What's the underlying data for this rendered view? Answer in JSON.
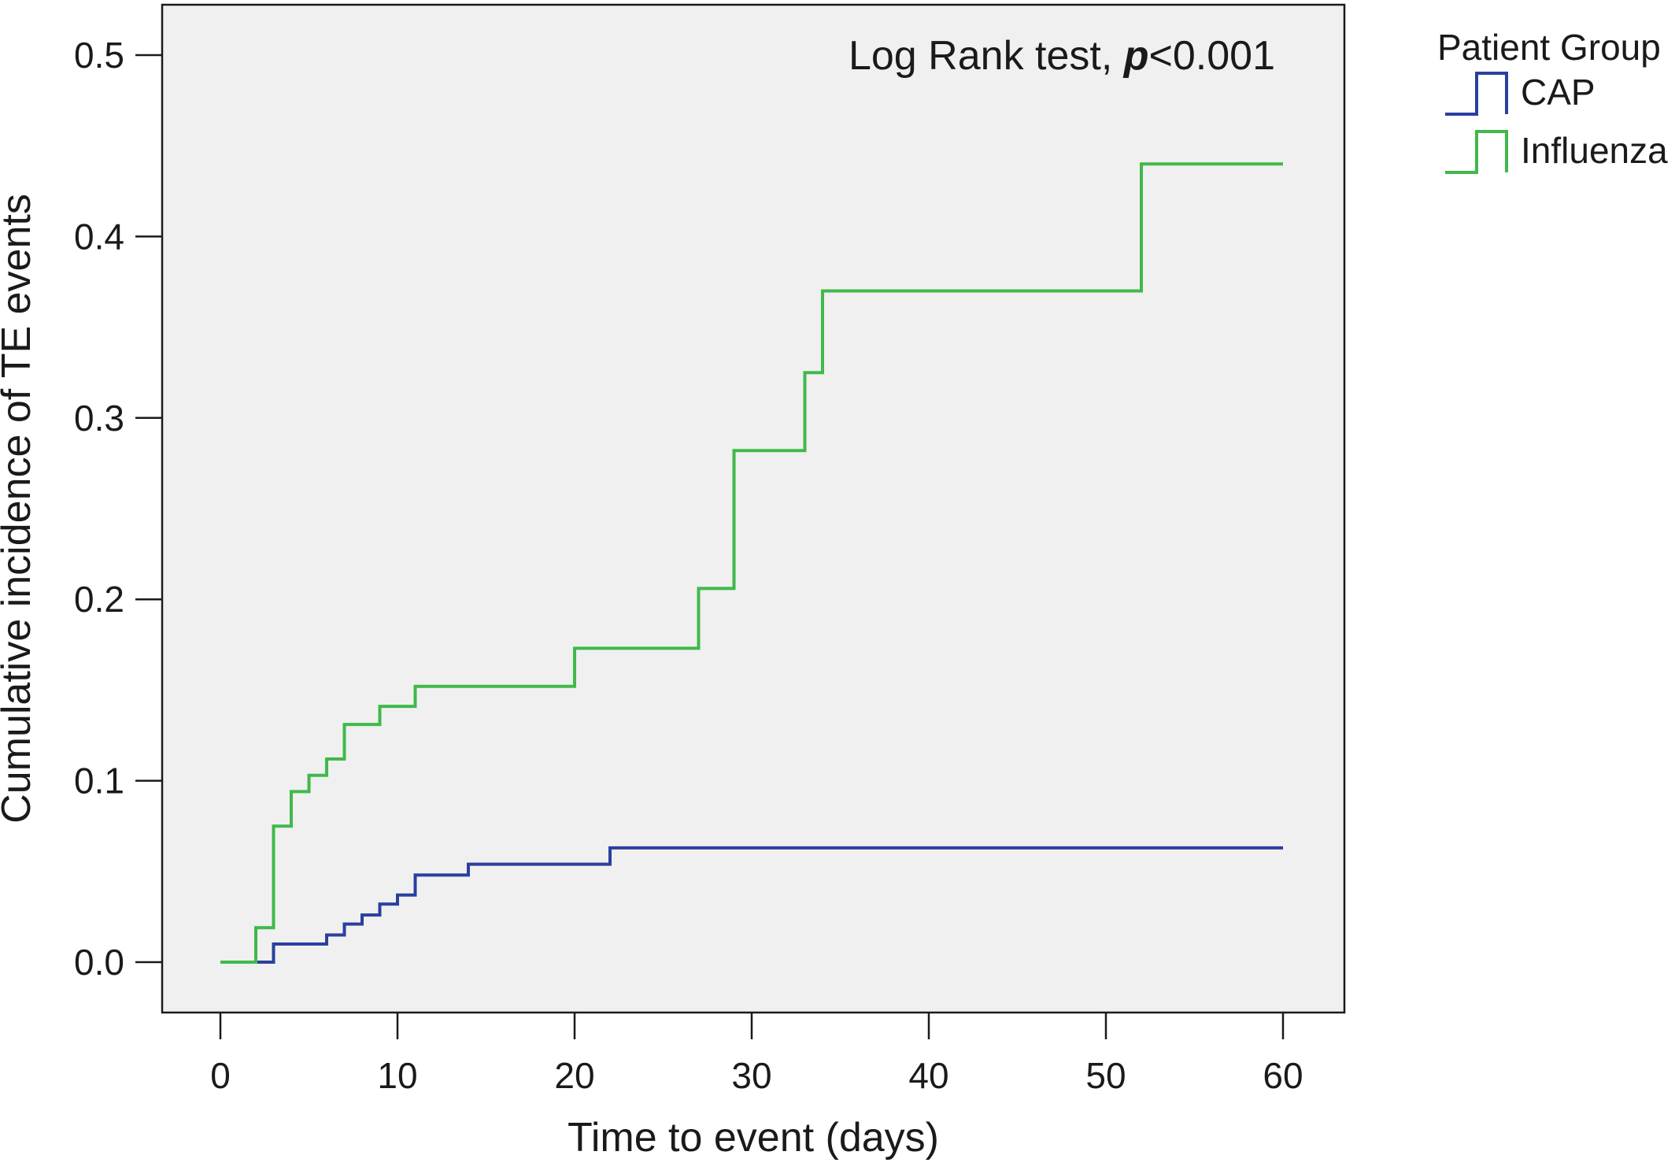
{
  "chart_data": {
    "type": "line",
    "step": true,
    "xlabel": "Time to event (days)",
    "ylabel": "Cumulative incidence of TE events",
    "xlim": [
      0,
      60
    ],
    "ylim": [
      0,
      0.5
    ],
    "xticks": [
      "0",
      "10",
      "20",
      "30",
      "40",
      "50",
      "60"
    ],
    "yticks": [
      "0.0",
      "0.1",
      "0.2",
      "0.3",
      "0.4",
      "0.5"
    ],
    "grid": false,
    "plot_background": "#f0f0f0",
    "annotation": {
      "prefix": "Log Rank test, ",
      "italic": "p",
      "suffix": "<0.001"
    },
    "legend": {
      "title": "Patient Group",
      "position": "outside-top-right"
    },
    "series": [
      {
        "name": "CAP",
        "color": "#2b3f9e",
        "x": [
          0,
          3,
          6,
          7,
          8,
          9,
          10,
          11,
          14,
          22,
          60
        ],
        "y": [
          0,
          0.01,
          0.015,
          0.021,
          0.026,
          0.032,
          0.037,
          0.048,
          0.054,
          0.063,
          0.063
        ]
      },
      {
        "name": "Influenza",
        "color": "#3fb94a",
        "x": [
          0,
          2,
          3,
          4,
          5,
          6,
          7,
          9,
          11,
          20,
          27,
          29,
          33,
          34,
          52,
          60
        ],
        "y": [
          0,
          0.019,
          0.075,
          0.094,
          0.103,
          0.112,
          0.131,
          0.141,
          0.152,
          0.173,
          0.206,
          0.282,
          0.325,
          0.37,
          0.44,
          0.44
        ]
      }
    ]
  }
}
